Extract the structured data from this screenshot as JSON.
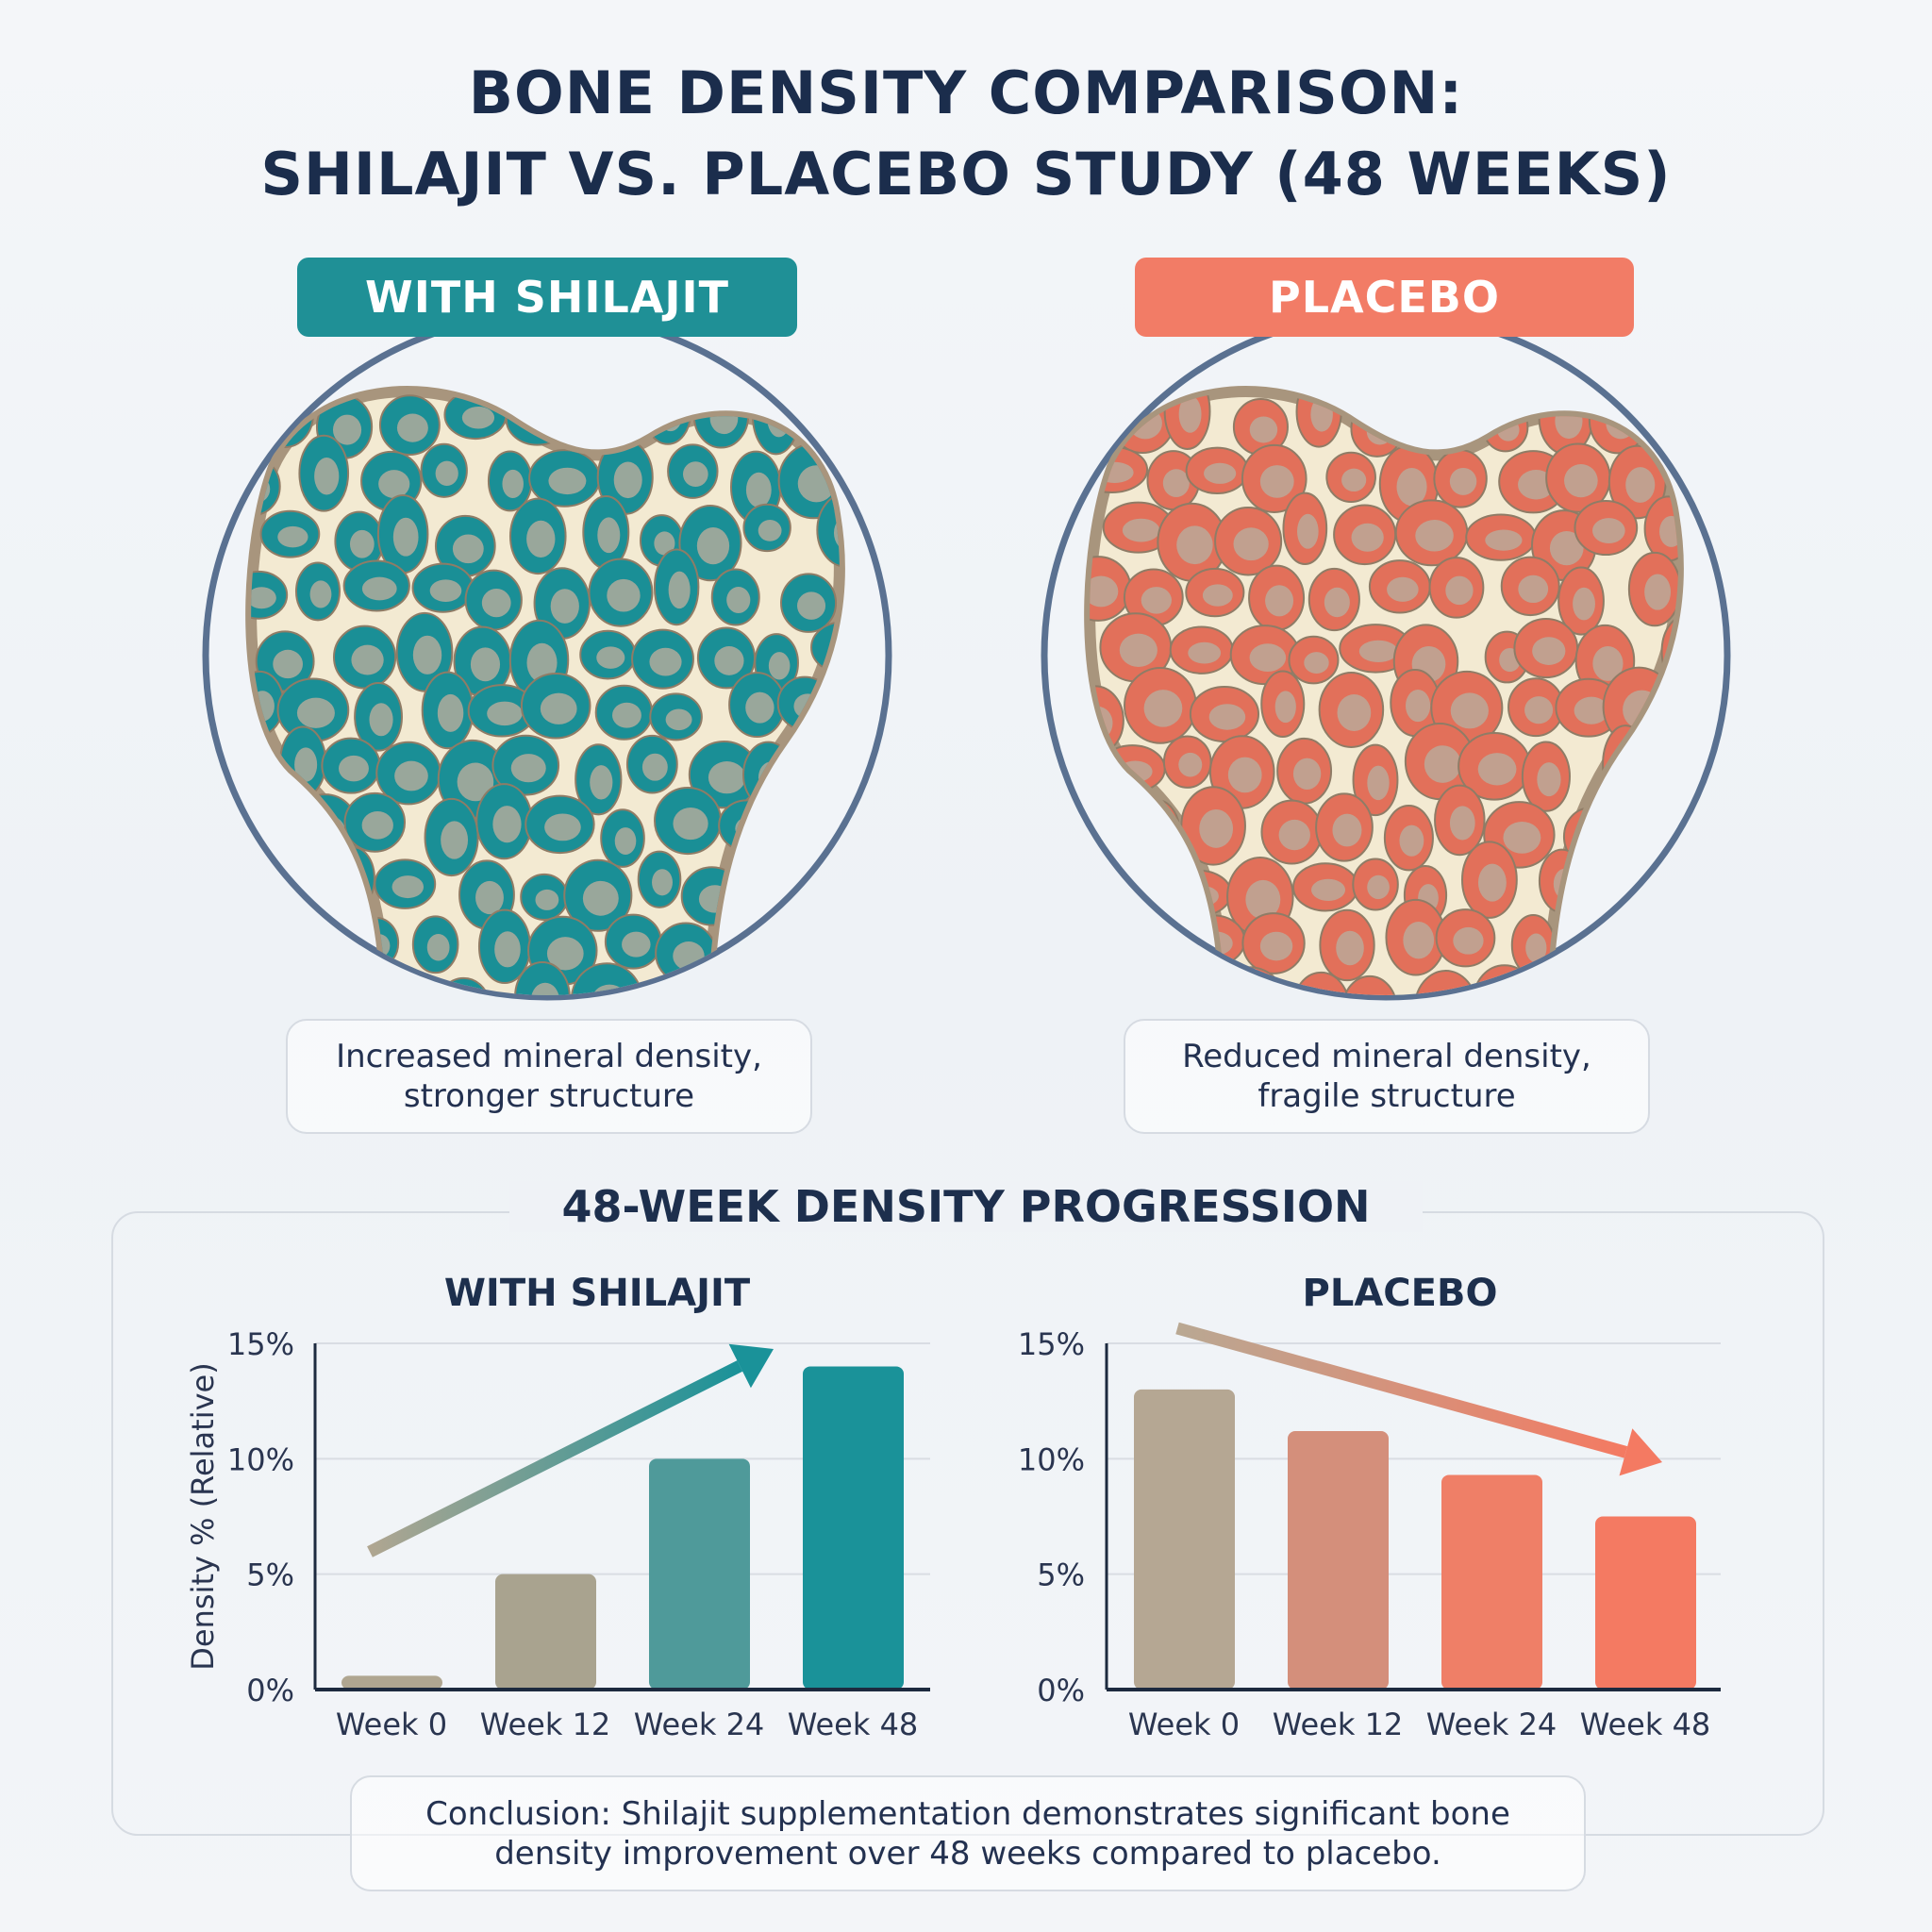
{
  "title": {
    "line1": "BONE DENSITY COMPARISON:",
    "line2": "SHILAJIT VS. PLACEBO STUDY (48 WEEKS)"
  },
  "panels": [
    {
      "label": "WITH SHILAJIT",
      "color": "#1f9096",
      "pore_color": "#1a8f96",
      "caption_line1": "Increased mineral density,",
      "caption_line2": "stronger structure"
    },
    {
      "label": "PLACEBO",
      "color": "#f27c66",
      "pore_color": "#e2705a",
      "caption_line1": "Reduced mineral density,",
      "caption_line2": "fragile structure"
    }
  ],
  "section_title": "48-WEEK DENSITY PROGRESSION",
  "chart_data": [
    {
      "type": "bar",
      "title": "WITH SHILAJIT",
      "ylabel": "Density % (Relative)",
      "categories": [
        "Week 0",
        "Week 12",
        "Week 24",
        "Week 48"
      ],
      "values": [
        0.6,
        5,
        10,
        14
      ],
      "ylim": [
        0,
        15
      ],
      "yticks": [
        "0%",
        "5%",
        "10%",
        "15%"
      ],
      "grid": true,
      "trend": "up",
      "colors": [
        "#b0a691",
        "#a9a38f",
        "#4f9a9a",
        "#1a9299"
      ]
    },
    {
      "type": "bar",
      "title": "PLACEBO",
      "ylabel": "",
      "categories": [
        "Week 0",
        "Week 12",
        "Week 24",
        "Week 48"
      ],
      "values": [
        13,
        11.2,
        9.3,
        7.5
      ],
      "ylim": [
        0,
        15
      ],
      "yticks": [
        "0%",
        "5%",
        "10%",
        "15%"
      ],
      "grid": true,
      "trend": "down",
      "colors": [
        "#b5a793",
        "#d48f7b",
        "#ef7f67",
        "#f47a62"
      ]
    }
  ],
  "conclusion": {
    "line1": "Conclusion: Shilajit supplementation demonstrates significant bone",
    "line2": "density improvement over 48 weeks compared to placebo."
  }
}
